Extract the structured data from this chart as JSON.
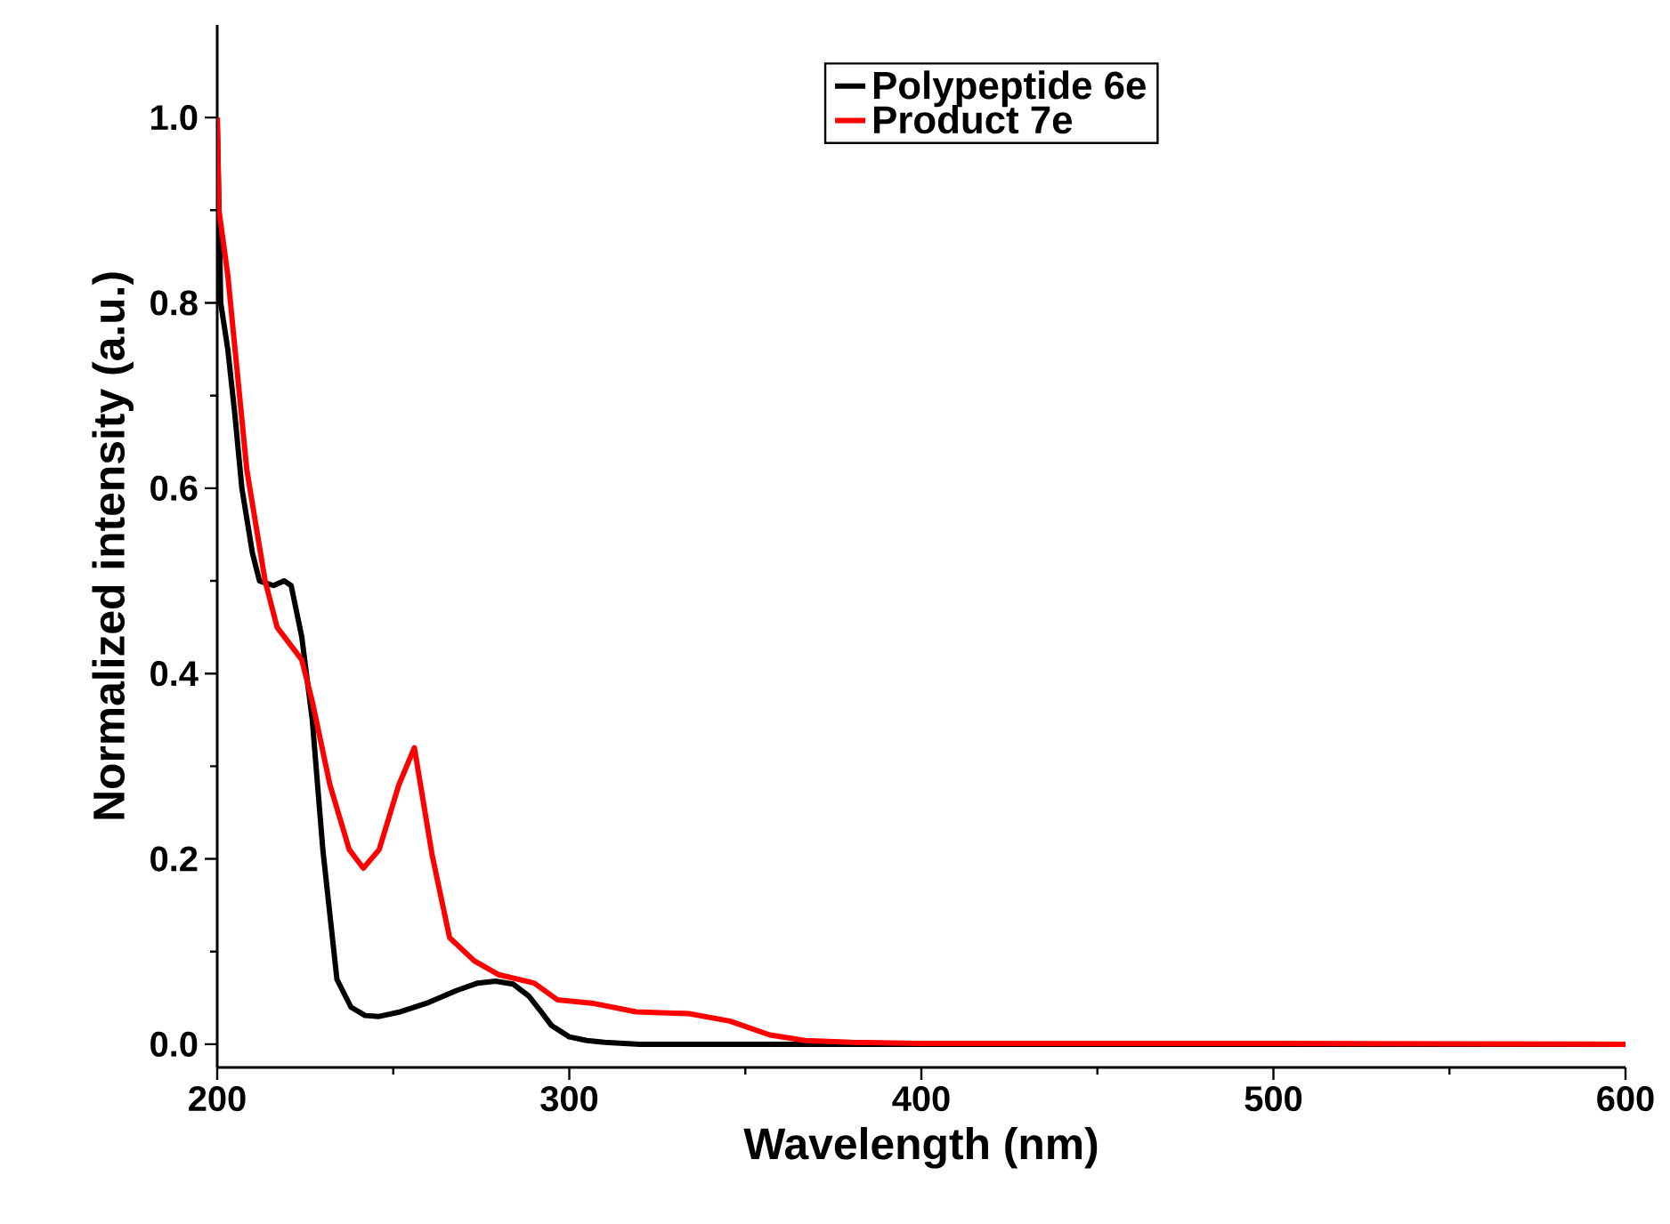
{
  "chart_data": {
    "type": "line",
    "xlabel": "Wavelength (nm)",
    "ylabel": "Normalized intensity (a.u.)",
    "xlim": [
      200,
      600
    ],
    "ylim": [
      -0.025,
      1.1
    ],
    "xticks": [
      200,
      300,
      400,
      500,
      600
    ],
    "yticks": [
      {
        "value": 0,
        "label": "0.0"
      },
      0.2,
      0.4,
      0.6,
      0.8,
      {
        "value": 1,
        "label": "1.0"
      }
    ],
    "grid": false,
    "legend": "top right",
    "marker": "none",
    "line_style": "solid",
    "series": [
      {
        "name": "Polypeptide 6e",
        "color": "#000000",
        "x": [
          200,
          201,
          203,
          205,
          207,
          210,
          212,
          216,
          219,
          221,
          224,
          227,
          230,
          234,
          238,
          242,
          246,
          252,
          260,
          268,
          274,
          279,
          284,
          288.5,
          292,
          295,
          300,
          305,
          310,
          320,
          350,
          400,
          500,
          600
        ],
        "values": [
          1.0,
          0.8,
          0.75,
          0.68,
          0.6,
          0.53,
          0.5,
          0.495,
          0.5,
          0.495,
          0.44,
          0.35,
          0.21,
          0.07,
          0.04,
          0.031,
          0.03,
          0.035,
          0.045,
          0.058,
          0.066,
          0.068,
          0.065,
          0.052,
          0.035,
          0.02,
          0.008,
          0.004,
          0.002,
          0.0,
          0.0,
          0.0,
          0.0,
          0.0
        ]
      },
      {
        "name": "Product 7e",
        "color": "#ff0000",
        "x": [
          200,
          200.5,
          203,
          208.4,
          213.6,
          217,
          224,
          227,
          232,
          237.5,
          241.5,
          246,
          251.6,
          256,
          261,
          266,
          273,
          280,
          290,
          296.6,
          307,
          319,
          334,
          345.6,
          357,
          367,
          380,
          400,
          500,
          600
        ],
        "values": [
          1.0,
          0.9,
          0.83,
          0.62,
          0.5,
          0.45,
          0.415,
          0.37,
          0.28,
          0.21,
          0.19,
          0.21,
          0.28,
          0.32,
          0.205,
          0.115,
          0.09,
          0.075,
          0.066,
          0.048,
          0.044,
          0.035,
          0.033,
          0.025,
          0.01,
          0.004,
          0.002,
          0.001,
          0.001,
          0.0
        ]
      }
    ]
  }
}
